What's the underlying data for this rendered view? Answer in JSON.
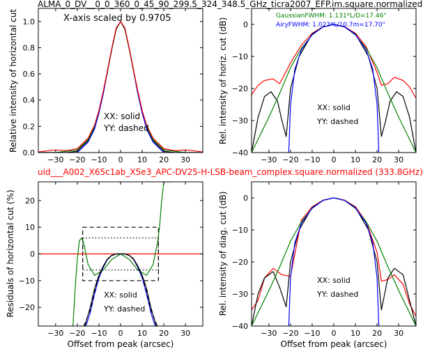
{
  "figure": {
    "title": "ALMA_0_DV__0_0_360_0_45_90_299.5_324_348.5_GHz_ticra2007_EFP.im.square.normalized",
    "subtitle": "uid___A002_X65c1ab_X5e3_APC-DV25-H-LSB-beam_complex.square.normalized (333.8GHz)",
    "title_color": "#000000",
    "subtitle_color": "#ff0000"
  },
  "colors": {
    "red": "#ff0000",
    "black": "#000000",
    "green": "#008000",
    "blue": "#0000ff"
  },
  "chart_data": [
    {
      "id": "top-left",
      "type": "line",
      "ylabel": "Relative intensity of horizontal cut",
      "xlabel": "",
      "xlim": [
        -38,
        38
      ],
      "ylim": [
        0,
        1.1
      ],
      "xticks": [
        -30,
        -20,
        -10,
        0,
        10,
        20,
        30
      ],
      "yticks": [
        0.0,
        0.2,
        0.4,
        0.6,
        0.8,
        1.0
      ],
      "ytick_labels": [
        "0.0",
        "0.2",
        "0.4",
        "0.6",
        "0.8",
        "1.0"
      ],
      "annotations": [
        "X-axis scaled by 0.9705",
        "XX: solid",
        "YY: dashed"
      ],
      "series": [
        {
          "color": "black",
          "style": "solid",
          "x": [
            -38,
            -30,
            -25,
            -20,
            -15,
            -12,
            -10,
            -8,
            -6,
            -4,
            -2,
            0,
            2,
            4,
            6,
            8,
            10,
            12,
            15,
            20,
            25,
            30,
            38
          ],
          "y": [
            0.0,
            0.0,
            0.0,
            0.01,
            0.09,
            0.19,
            0.3,
            0.45,
            0.62,
            0.79,
            0.94,
            1.0,
            0.94,
            0.79,
            0.62,
            0.45,
            0.3,
            0.19,
            0.09,
            0.01,
            0.0,
            0.0,
            0.0
          ]
        },
        {
          "color": "green",
          "style": "solid",
          "x": [
            -38,
            -30,
            -25,
            -20,
            -15,
            -12,
            -10,
            -8,
            -6,
            -4,
            -2,
            0,
            2,
            4,
            6,
            8,
            10,
            12,
            15,
            20,
            25,
            30,
            38
          ],
          "y": [
            0.0,
            0.0,
            0.01,
            0.02,
            0.1,
            0.2,
            0.31,
            0.46,
            0.62,
            0.79,
            0.94,
            1.0,
            0.94,
            0.79,
            0.62,
            0.46,
            0.31,
            0.2,
            0.1,
            0.02,
            0.01,
            0.0,
            0.0
          ]
        },
        {
          "color": "blue",
          "style": "solid",
          "x": [
            -38,
            -30,
            -25,
            -20,
            -15,
            -12,
            -10,
            -8,
            -6,
            -4,
            -2,
            0,
            2,
            4,
            6,
            8,
            10,
            12,
            15,
            20,
            25,
            30,
            38
          ],
          "y": [
            0.0,
            0.0,
            0.0,
            0.0,
            0.08,
            0.18,
            0.3,
            0.45,
            0.63,
            0.8,
            0.95,
            1.0,
            0.95,
            0.8,
            0.63,
            0.45,
            0.3,
            0.18,
            0.08,
            0.0,
            0.0,
            0.0,
            0.0
          ]
        },
        {
          "color": "red",
          "style": "solid",
          "x": [
            -38,
            -33,
            -30,
            -25,
            -20,
            -15,
            -12,
            -10,
            -8,
            -6,
            -4,
            -2,
            0,
            2,
            4,
            6,
            8,
            10,
            12,
            15,
            20,
            25,
            30,
            33,
            38
          ],
          "y": [
            0.005,
            0.015,
            0.02,
            0.015,
            0.03,
            0.11,
            0.21,
            0.32,
            0.47,
            0.63,
            0.8,
            0.95,
            1.0,
            0.95,
            0.8,
            0.63,
            0.47,
            0.32,
            0.21,
            0.11,
            0.03,
            0.015,
            0.02,
            0.015,
            0.005
          ]
        }
      ]
    },
    {
      "id": "top-right",
      "type": "line",
      "ylabel": "Rel. intensity of horiz. cut (dB)",
      "xlabel": "",
      "xlim": [
        -38,
        38
      ],
      "ylim": [
        -40,
        5
      ],
      "xticks": [
        -30,
        -20,
        -10,
        0,
        10,
        20,
        30
      ],
      "yticks": [
        -40,
        -30,
        -20,
        -10,
        0
      ],
      "ytick_labels": [
        "−40",
        "−30",
        "−20",
        "−10",
        "0"
      ],
      "annotations": [
        "GaussianFWHM: 1.131*L/D=17.46\"",
        "AiryFWHM: 1.023*L/10.7m=17.70\"",
        "XX: solid",
        "YY: dashed"
      ],
      "series": [
        {
          "color": "red",
          "style": "solid",
          "x": [
            -38,
            -35,
            -32,
            -28,
            -25,
            -20,
            -15,
            -10,
            -5,
            0,
            5,
            10,
            15,
            20,
            22,
            25,
            28,
            32,
            35,
            38
          ],
          "y": [
            -22,
            -19,
            -17.5,
            -17,
            -18.5,
            -12,
            -6.5,
            -2.8,
            -0.7,
            0,
            -0.7,
            -2.8,
            -7,
            -15,
            -19,
            -18.5,
            -16.5,
            -17.5,
            -19.5,
            -23
          ]
        },
        {
          "color": "black",
          "style": "solid",
          "x": [
            -38,
            -35,
            -32,
            -29,
            -26,
            -24,
            -22,
            -20,
            -16,
            -10,
            -5,
            0,
            5,
            10,
            16,
            20,
            22,
            24,
            26,
            29,
            32,
            35,
            38
          ],
          "y": [
            -40,
            -29,
            -22.5,
            -21,
            -24,
            -30,
            -35,
            -20,
            -10,
            -3,
            -0.8,
            0,
            -0.8,
            -3,
            -10,
            -20,
            -35,
            -30,
            -24,
            -21,
            -22.5,
            -29,
            -40
          ]
        },
        {
          "color": "green",
          "style": "solid",
          "x": [
            -38,
            -30,
            -25,
            -20,
            -15,
            -10,
            -5,
            0,
            5,
            10,
            15,
            20,
            25,
            30,
            38
          ],
          "y": [
            -40,
            -29,
            -21.5,
            -13.5,
            -7.5,
            -3.3,
            -0.8,
            0,
            -0.8,
            -3.3,
            -7.5,
            -13.5,
            -21.5,
            -29,
            -40
          ]
        },
        {
          "color": "blue",
          "style": "solid",
          "x": [
            -20.8,
            -20,
            -18,
            -15,
            -10,
            -5,
            0,
            5,
            10,
            15,
            18,
            20,
            20.8
          ],
          "y": [
            -40,
            -25,
            -14,
            -8,
            -3.2,
            -0.8,
            0,
            -0.8,
            -3.2,
            -8,
            -14,
            -25,
            -40
          ]
        }
      ]
    },
    {
      "id": "bottom-left",
      "type": "line",
      "ylabel": "Residuals of horizontal cut (%)",
      "xlabel": "Offset from peak (arcsec)",
      "xlim": [
        -38,
        38
      ],
      "ylim": [
        -27,
        27
      ],
      "xticks": [
        -30,
        -20,
        -10,
        0,
        10,
        20,
        30
      ],
      "yticks": [
        -20,
        -10,
        0,
        10,
        20
      ],
      "ytick_labels": [
        "−20",
        "−10",
        "0",
        "10",
        "20"
      ],
      "annotations": [
        "XX: solid",
        "YY: dashed"
      ],
      "series": [
        {
          "color": "red",
          "style": "solid",
          "x": [
            -38,
            38
          ],
          "y": [
            0,
            0
          ]
        },
        {
          "color": "green",
          "style": "solid",
          "x": [
            -22,
            -21,
            -20,
            -19,
            -18,
            -17,
            -16,
            -15,
            -12,
            -8,
            -4,
            0,
            4,
            8,
            12,
            15,
            16,
            17,
            18,
            19,
            20,
            21,
            22,
            23
          ],
          "y": [
            -27,
            -13,
            -2,
            5,
            6,
            4,
            0,
            -4,
            -8,
            -6,
            -2,
            0,
            -2,
            -6,
            -8,
            -4,
            0,
            4,
            10,
            20,
            27,
            27,
            27,
            27
          ]
        },
        {
          "color": "blue",
          "style": "solid",
          "x": [
            -16,
            -14,
            -12,
            -10,
            -8,
            -6,
            -4,
            -2,
            0,
            2,
            4,
            6,
            8,
            10,
            12,
            14,
            16
          ],
          "y": [
            -27,
            -22,
            -15,
            -9,
            -5,
            -2,
            -0.5,
            0,
            0,
            0,
            -0.5,
            -2,
            -5,
            -9,
            -15,
            -22,
            -27
          ]
        },
        {
          "color": "black",
          "style": "solid",
          "x": [
            -16.5,
            -14,
            -12,
            -10,
            -8,
            -6,
            -4,
            -2,
            0,
            2,
            4,
            6,
            8,
            10,
            12,
            14,
            16.5
          ],
          "y": [
            -27,
            -20,
            -13,
            -8,
            -4.5,
            -1.8,
            -0.5,
            0,
            0,
            0,
            -0.5,
            -1.8,
            -4.5,
            -8,
            -13,
            -20,
            -27
          ]
        },
        {
          "color": "black",
          "style": "dashed",
          "x": [
            -17,
            -14,
            -12,
            -10,
            -8,
            -6,
            -4,
            -2,
            0,
            2,
            4,
            6,
            8,
            10,
            12,
            14,
            17
          ],
          "y": [
            -27,
            -21,
            -14,
            -8.5,
            -4.8,
            -2,
            -0.6,
            0,
            0,
            0,
            -0.6,
            -2,
            -4.8,
            -8.5,
            -14,
            -21,
            -27
          ]
        }
      ],
      "boxes": [
        {
          "style": "dashed",
          "x": [
            -17.5,
            17.5
          ],
          "y": [
            -10,
            10
          ]
        },
        {
          "style": "dotted",
          "x": [
            -17.5,
            17.5
          ],
          "y": [
            -6,
            6
          ]
        }
      ]
    },
    {
      "id": "bottom-right",
      "type": "line",
      "ylabel": "Rel. intensity of diag. cut (dB)",
      "xlabel": "Offset from peak (arcsec)",
      "xlim": [
        -38,
        38
      ],
      "ylim": [
        -40,
        5
      ],
      "xticks": [
        -30,
        -20,
        -10,
        0,
        10,
        20,
        30
      ],
      "yticks": [
        -40,
        -30,
        -20,
        -10,
        0
      ],
      "ytick_labels": [
        "−40",
        "−30",
        "−20",
        "−10",
        "0"
      ],
      "annotations": [
        "XX: solid",
        "YY: dashed"
      ],
      "series": [
        {
          "color": "red",
          "style": "solid",
          "x": [
            -38,
            -35,
            -32,
            -28,
            -24,
            -20,
            -15,
            -10,
            -5,
            0,
            5,
            10,
            15,
            20,
            22,
            25,
            28,
            32,
            35,
            38
          ],
          "y": [
            -35,
            -32,
            -25,
            -22,
            -24,
            -24.5,
            -7,
            -2.8,
            -0.7,
            0,
            -0.7,
            -2.8,
            -7.5,
            -17,
            -26,
            -25.5,
            -24,
            -27,
            -33,
            -37
          ]
        },
        {
          "color": "black",
          "style": "solid",
          "x": [
            -38,
            -35,
            -32,
            -28,
            -25,
            -22,
            -20,
            -16,
            -10,
            -5,
            0,
            5,
            10,
            16,
            20,
            22,
            25,
            28,
            32,
            35,
            38
          ],
          "y": [
            -40,
            -30,
            -25,
            -23,
            -28,
            -34,
            -20,
            -10,
            -3,
            -0.8,
            0,
            -0.8,
            -3,
            -10,
            -20,
            -35,
            -25,
            -22,
            -24,
            -32,
            -40
          ]
        },
        {
          "color": "green",
          "style": "solid",
          "x": [
            -38,
            -30,
            -25,
            -20,
            -15,
            -10,
            -5,
            0,
            5,
            10,
            15,
            20,
            25,
            30,
            38
          ],
          "y": [
            -40,
            -29,
            -21.5,
            -13.5,
            -7.5,
            -3.3,
            -0.8,
            0,
            -0.8,
            -3.3,
            -7.5,
            -13.5,
            -21.5,
            -29,
            -40
          ]
        },
        {
          "color": "blue",
          "style": "solid",
          "x": [
            -20.8,
            -20,
            -18,
            -15,
            -10,
            -5,
            0,
            5,
            10,
            15,
            18,
            20,
            20.8
          ],
          "y": [
            -40,
            -25,
            -14,
            -8,
            -3.2,
            -0.8,
            0,
            -0.8,
            -3.2,
            -8,
            -14,
            -25,
            -40
          ]
        }
      ]
    }
  ]
}
